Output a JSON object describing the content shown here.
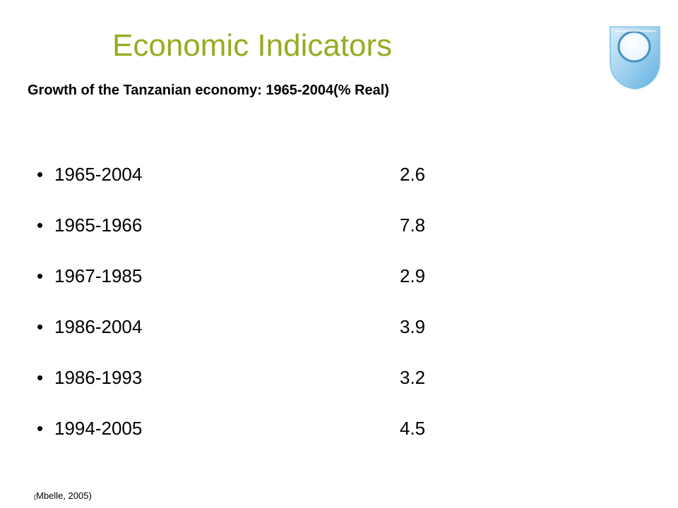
{
  "slide": {
    "title": "Economic Indicators",
    "subtitle": "Growth of the Tanzanian economy: 1965-2004(% Real)",
    "title_color": "#99AA22",
    "logo_icon": "open-university-shield-logo"
  },
  "rows": [
    {
      "period": "1965-2004",
      "value": "2.6"
    },
    {
      "period": "1965-1966",
      "value": "7.8"
    },
    {
      "period": "1967-1985",
      "value": "2.9"
    },
    {
      "period": "1986-2004",
      "value": "3.9"
    },
    {
      "period": "1986-1993",
      "value": "3.2"
    },
    {
      "period": "1994-2005",
      "value": "4.5"
    }
  ],
  "bullet_glyph": "•",
  "source": {
    "open_paren": "(",
    "text": "Mbelle, 2005)"
  }
}
